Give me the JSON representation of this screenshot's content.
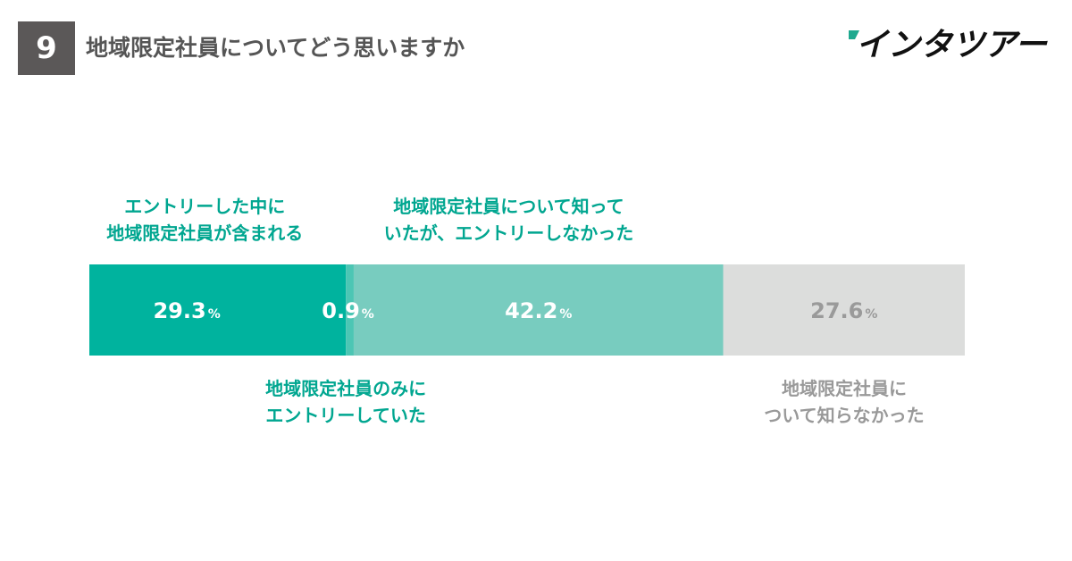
{
  "header": {
    "question_number": "9",
    "title": "地域限定社員についてどう思いますか",
    "brand": "インタツアー"
  },
  "colors": {
    "badge": "#5b5858",
    "entered_both": "#00b39e",
    "entered_only": "#4cc6b4",
    "knew_not_entered": "#78ccbf",
    "did_not_know": "#dcdddc",
    "label_teal": "#00a690",
    "label_gray": "#999999"
  },
  "chart_data": {
    "type": "bar",
    "orientation": "horizontal-stacked-100",
    "title": "",
    "xlabel": "",
    "ylabel": "",
    "xlim": [
      0,
      100
    ],
    "unit": "%",
    "segments": [
      {
        "key": "entered_both",
        "value": 29.3,
        "value_text": "29.3",
        "label_line1": "エントリーした中に",
        "label_line2": "地域限定社員が含まれる"
      },
      {
        "key": "entered_only",
        "value": 0.9,
        "value_text": "0.9",
        "label_line1": "地域限定社員のみに",
        "label_line2": "エントリーしていた"
      },
      {
        "key": "knew_not_entered",
        "value": 42.2,
        "value_text": "42.2",
        "label_line1": "地域限定社員について知って",
        "label_line2": "いたが、エントリーしなかった"
      },
      {
        "key": "did_not_know",
        "value": 27.6,
        "value_text": "27.6",
        "label_line1": "地域限定社員に",
        "label_line2": "ついて知らなかった"
      }
    ]
  }
}
